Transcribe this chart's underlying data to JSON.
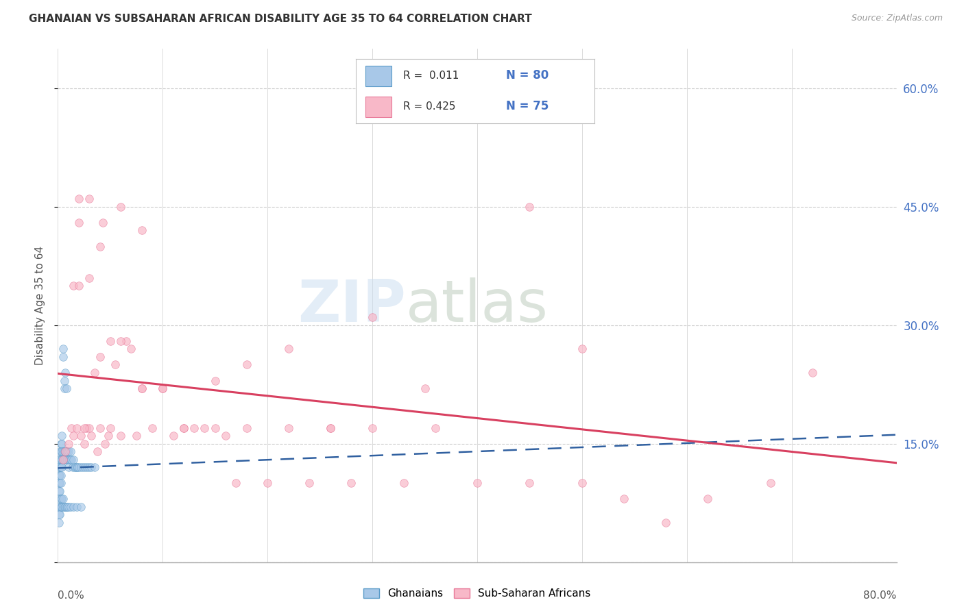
{
  "title": "GHANAIAN VS SUBSAHARAN AFRICAN DISABILITY AGE 35 TO 64 CORRELATION CHART",
  "source": "Source: ZipAtlas.com",
  "ylabel": "Disability Age 35 to 64",
  "xmin": 0.0,
  "xmax": 0.8,
  "ymin": 0.0,
  "ymax": 0.65,
  "yticks": [
    0.0,
    0.15,
    0.3,
    0.45,
    0.6
  ],
  "ytick_labels": [
    "",
    "15.0%",
    "30.0%",
    "45.0%",
    "60.0%"
  ],
  "legend_r1": "R =  0.011",
  "legend_n1": "N = 80",
  "legend_r2": "R = 0.425",
  "legend_n2": "N = 75",
  "legend_label1": "Ghanaians",
  "legend_label2": "Sub-Saharan Africans",
  "blue_fill": "#A8C8E8",
  "blue_edge": "#5B9BC8",
  "pink_fill": "#F8B8C8",
  "pink_edge": "#E87898",
  "blue_line_color": "#3060A0",
  "pink_line_color": "#D84060",
  "text_blue": "#4472C4",
  "grid_color": "#CCCCCC",
  "ghana_x": [
    0.001,
    0.001,
    0.001,
    0.001,
    0.001,
    0.002,
    0.002,
    0.002,
    0.002,
    0.002,
    0.002,
    0.002,
    0.003,
    0.003,
    0.003,
    0.003,
    0.003,
    0.003,
    0.004,
    0.004,
    0.004,
    0.004,
    0.004,
    0.005,
    0.005,
    0.005,
    0.005,
    0.006,
    0.006,
    0.006,
    0.006,
    0.007,
    0.007,
    0.007,
    0.008,
    0.008,
    0.008,
    0.009,
    0.009,
    0.01,
    0.01,
    0.01,
    0.011,
    0.012,
    0.012,
    0.013,
    0.014,
    0.015,
    0.016,
    0.017,
    0.018,
    0.019,
    0.02,
    0.022,
    0.024,
    0.026,
    0.028,
    0.03,
    0.032,
    0.035,
    0.001,
    0.001,
    0.001,
    0.002,
    0.002,
    0.003,
    0.003,
    0.004,
    0.004,
    0.005,
    0.005,
    0.006,
    0.007,
    0.008,
    0.009,
    0.01,
    0.012,
    0.015,
    0.018,
    0.022
  ],
  "ghana_y": [
    0.13,
    0.12,
    0.11,
    0.1,
    0.09,
    0.14,
    0.13,
    0.12,
    0.11,
    0.1,
    0.09,
    0.08,
    0.15,
    0.14,
    0.13,
    0.12,
    0.11,
    0.1,
    0.16,
    0.15,
    0.14,
    0.13,
    0.12,
    0.27,
    0.26,
    0.14,
    0.13,
    0.23,
    0.22,
    0.14,
    0.13,
    0.24,
    0.14,
    0.13,
    0.22,
    0.14,
    0.13,
    0.14,
    0.13,
    0.14,
    0.13,
    0.12,
    0.13,
    0.14,
    0.13,
    0.13,
    0.12,
    0.13,
    0.12,
    0.12,
    0.12,
    0.12,
    0.12,
    0.12,
    0.12,
    0.12,
    0.12,
    0.12,
    0.12,
    0.12,
    0.07,
    0.06,
    0.05,
    0.07,
    0.06,
    0.08,
    0.07,
    0.08,
    0.07,
    0.08,
    0.07,
    0.07,
    0.07,
    0.07,
    0.07,
    0.07,
    0.07,
    0.07,
    0.07,
    0.07
  ],
  "sub_x": [
    0.005,
    0.007,
    0.01,
    0.013,
    0.015,
    0.018,
    0.02,
    0.022,
    0.025,
    0.027,
    0.03,
    0.032,
    0.035,
    0.038,
    0.04,
    0.043,
    0.045,
    0.048,
    0.05,
    0.055,
    0.06,
    0.065,
    0.07,
    0.075,
    0.08,
    0.09,
    0.1,
    0.11,
    0.12,
    0.13,
    0.14,
    0.15,
    0.16,
    0.17,
    0.18,
    0.2,
    0.22,
    0.24,
    0.26,
    0.28,
    0.3,
    0.33,
    0.36,
    0.4,
    0.45,
    0.5,
    0.54,
    0.58,
    0.62,
    0.68,
    0.72,
    0.015,
    0.02,
    0.025,
    0.03,
    0.04,
    0.05,
    0.06,
    0.08,
    0.1,
    0.12,
    0.15,
    0.18,
    0.22,
    0.26,
    0.3,
    0.35,
    0.4,
    0.45,
    0.5,
    0.02,
    0.03,
    0.04,
    0.06,
    0.08
  ],
  "sub_y": [
    0.13,
    0.14,
    0.15,
    0.17,
    0.16,
    0.17,
    0.43,
    0.16,
    0.15,
    0.17,
    0.17,
    0.16,
    0.24,
    0.14,
    0.17,
    0.43,
    0.15,
    0.16,
    0.17,
    0.25,
    0.16,
    0.28,
    0.27,
    0.16,
    0.22,
    0.17,
    0.22,
    0.16,
    0.17,
    0.17,
    0.17,
    0.17,
    0.16,
    0.1,
    0.17,
    0.1,
    0.17,
    0.1,
    0.17,
    0.1,
    0.17,
    0.1,
    0.17,
    0.1,
    0.1,
    0.1,
    0.08,
    0.05,
    0.08,
    0.1,
    0.24,
    0.35,
    0.35,
    0.17,
    0.36,
    0.26,
    0.28,
    0.28,
    0.22,
    0.22,
    0.17,
    0.23,
    0.25,
    0.27,
    0.17,
    0.31,
    0.22,
    0.57,
    0.45,
    0.27,
    0.46,
    0.46,
    0.4,
    0.45,
    0.42
  ]
}
